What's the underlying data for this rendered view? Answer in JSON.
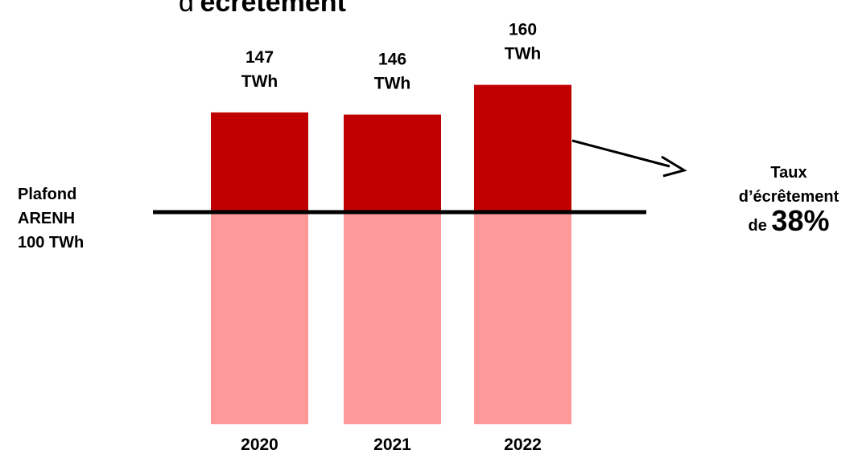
{
  "title": {
    "prefix": "d’",
    "emph": "écrêtement"
  },
  "threshold": {
    "line1": "Plafond",
    "line2": "ARENH",
    "line3": "100 TWh",
    "value": 100
  },
  "annotation": {
    "line1": "Taux",
    "line2": "d’écrêtement",
    "prefix": "de ",
    "rate": "38%"
  },
  "colors": {
    "above": "#c00000",
    "below": "#ff9999",
    "line": "#000000"
  },
  "chart_data": {
    "type": "bar",
    "stacked": true,
    "categories": [
      "2020",
      "2021",
      "2022"
    ],
    "series": [
      {
        "values": [
          100,
          100,
          100
        ]
      },
      {
        "values": [
          47,
          46,
          60
        ]
      }
    ],
    "totals": [
      147,
      146,
      160
    ],
    "unit": "TWh",
    "data_labels": [
      "147 TWh",
      "146 TWh",
      "160 TWh"
    ],
    "threshold": 100
  }
}
